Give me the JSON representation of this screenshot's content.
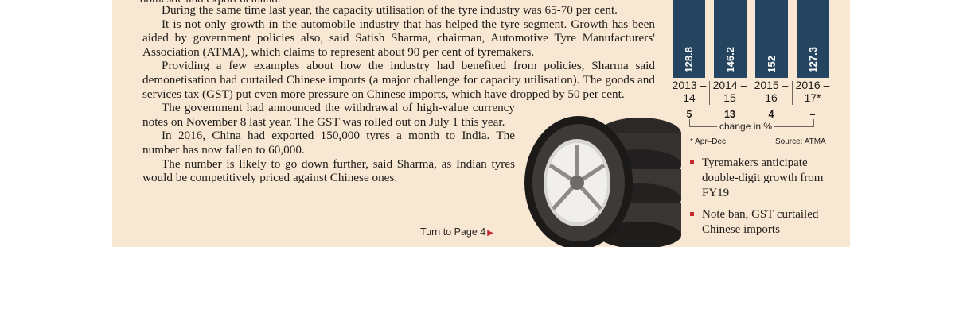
{
  "article": {
    "cut_line": "domestic and export demand.",
    "paragraphs": [
      "During the same time last year, the capacity utilisation of the tyre industry was 65-70 per cent.",
      "It is not only growth in the automobile industry that has helped the tyre segment. Growth has been aided by government policies also, said Satish Sharma, chairman, Automotive Tyre Manufacturers' Association (ATMA), which claims to represent about 90 per cent of tyremakers.",
      "Providing a few examples about how the industry had benefited from policies, Sharma said demonetisation had curtailed Chinese imports (a major challenge for capacity utilisation). The goods and services tax (GST) put even more pressure on Chinese imports, which have dropped by 50 per cent.",
      "The government had announced the withdrawal of high-value currency notes on November 8 last year. The GST was rolled out on July 1 this year.",
      "In 2016, China had exported 150,000 tyres a month to India. The number has now fallen to 60,000.",
      "The number is likely to go down further, said Sharma, as Indian tyres would be competitively priced against Chinese ones."
    ],
    "turn_to": "Turn to Page 4"
  },
  "chart": {
    "years": [
      "2013 –14",
      "2014 –15",
      "2015 –16",
      "2016 –17*"
    ],
    "changes": [
      "5",
      "13",
      "4",
      "–"
    ],
    "change_label": "change in %",
    "footnote": "* Apr–Dec",
    "source": "Source: ATMA"
  },
  "chart_data": {
    "type": "bar",
    "categories": [
      "2013 –14",
      "2014 –15",
      "2015 –16",
      "2016 –17*"
    ],
    "values": [
      128.8,
      146.2,
      152,
      127.3
    ]
  },
  "bullets": [
    "Tyremakers anticipate double-digit growth from FY19",
    "Note ban, GST curtailed Chinese imports"
  ],
  "colors": {
    "bar": "#24445f",
    "accent": "#c4262e",
    "paper": "#f8e8d3"
  }
}
